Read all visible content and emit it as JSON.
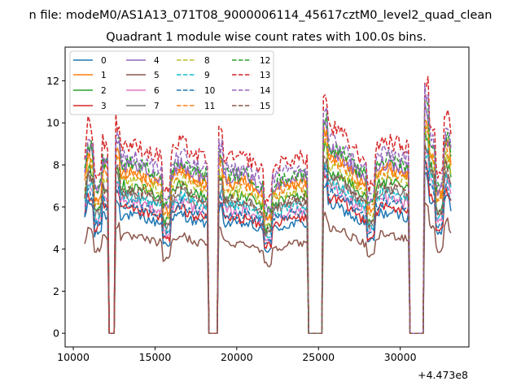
{
  "chart_data": {
    "type": "line",
    "suptitle": "n file: modeM0/AS1A13_071T08_9000006114_45617cztM0_level2_quad_clean",
    "title": "Quadrant 1 module wise count rates with 100.0s bins.",
    "xlabel": "",
    "ylabel": "",
    "xlim": [
      9500,
      34200
    ],
    "ylim": [
      -0.65,
      13.6
    ],
    "x_offset_label": "+4.473e8",
    "x_ticks": [
      10000,
      15000,
      20000,
      25000,
      30000
    ],
    "x_tick_labels": [
      "10000",
      "15000",
      "20000",
      "25000",
      "30000"
    ],
    "y_ticks": [
      0,
      2,
      4,
      6,
      8,
      10,
      12
    ],
    "y_tick_labels": [
      "0",
      "2",
      "4",
      "6",
      "8",
      "10",
      "12"
    ],
    "grid": false,
    "legend_position": "upper-left",
    "legend_columns": 4,
    "x_range": [
      10700,
      33100
    ],
    "bin_size_s": 100,
    "gaps": [
      [
        12100,
        12550
      ],
      [
        18200,
        18850
      ],
      [
        24350,
        25250
      ],
      [
        30550,
        31450
      ]
    ],
    "segment_levels": [
      [
        5.3,
        6.3,
        6.1,
        5.7,
        5.8,
        6.0,
        5.6,
        5.6
      ],
      [
        5.6,
        5.6,
        5.5,
        5.3,
        5.2,
        5.7,
        5.3,
        5.2
      ],
      [
        5.3,
        5.2,
        5.2,
        4.8,
        5.0,
        5.2,
        5.2
      ],
      [
        6.3,
        6.1,
        5.9,
        5.6,
        5.2,
        5.3,
        5.7,
        5.7,
        5.6,
        5.5
      ],
      [
        6.8,
        6.5,
        6.2,
        5.8,
        5.9,
        6.6,
        6.0
      ]
    ],
    "series": [
      {
        "name": "0",
        "color": "#1f77b4",
        "dash": "solid",
        "scale": 1.0
      },
      {
        "name": "1",
        "color": "#ff7f0e",
        "dash": "solid",
        "scale": 1.38
      },
      {
        "name": "2",
        "color": "#2ca02c",
        "dash": "solid",
        "scale": 1.25
      },
      {
        "name": "3",
        "color": "#d62728",
        "dash": "solid",
        "scale": 1.05
      },
      {
        "name": "4",
        "color": "#9467bd",
        "dash": "solid",
        "scale": 1.42
      },
      {
        "name": "5",
        "color": "#8c564b",
        "dash": "solid",
        "scale": 0.82
      },
      {
        "name": "6",
        "color": "#e377c2",
        "dash": "solid",
        "scale": 1.12
      },
      {
        "name": "7",
        "color": "#7f7f7f",
        "dash": "solid",
        "scale": 1.19
      },
      {
        "name": "8",
        "color": "#bcbd22",
        "dash": "dashed",
        "scale": 1.3
      },
      {
        "name": "9",
        "color": "#17becf",
        "dash": "dashed",
        "scale": 1.16
      },
      {
        "name": "10",
        "color": "#1f77b4",
        "dash": "dashed",
        "scale": 1.09
      },
      {
        "name": "11",
        "color": "#ff7f0e",
        "dash": "dashed",
        "scale": 1.34
      },
      {
        "name": "12",
        "color": "#2ca02c",
        "dash": "dashed",
        "scale": 1.45
      },
      {
        "name": "13",
        "color": "#d62728",
        "dash": "dashed",
        "scale": 1.6
      },
      {
        "name": "14",
        "color": "#9467bd",
        "dash": "dashed",
        "scale": 1.5
      },
      {
        "name": "15",
        "color": "#8c564b",
        "dash": "dashed",
        "scale": 1.22
      }
    ]
  }
}
